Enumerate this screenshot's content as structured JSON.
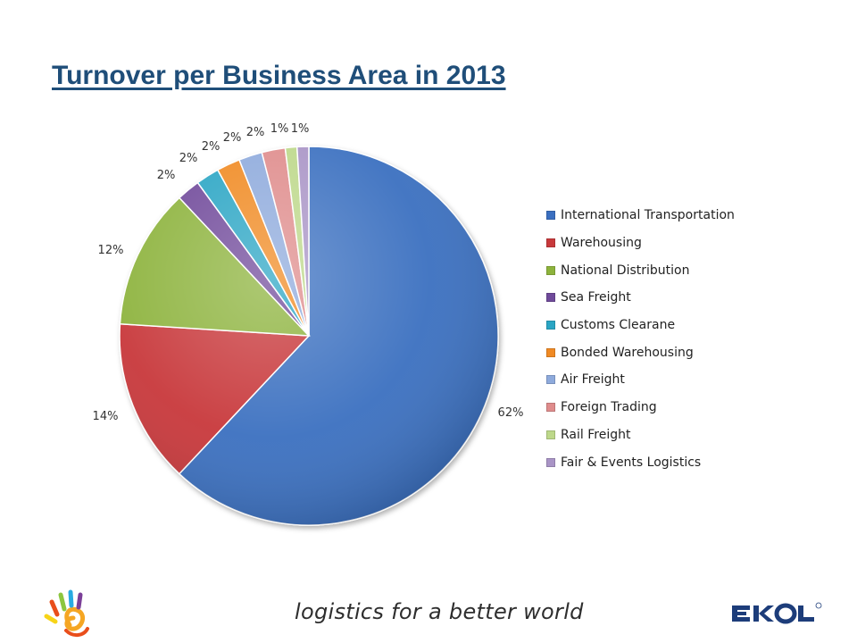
{
  "slide": {
    "title": "Turnover per Business Area in 2013",
    "tagline": "logistics for a better world",
    "logo_right": "EKOL",
    "logo_left": "EKOL hand logo"
  },
  "colors": {
    "title": "#1f4e79"
  },
  "chart_data": {
    "type": "pie",
    "style": "3d-effect pie",
    "legend_position": "right",
    "slices": [
      {
        "name": "International Transportation",
        "value": 62,
        "label": "62%",
        "color": "#3a6fc0"
      },
      {
        "name": "Warehousing",
        "value": 14,
        "label": "14%",
        "color": "#c8393b"
      },
      {
        "name": "National Distribution",
        "value": 12,
        "label": "12%",
        "color": "#8db33c"
      },
      {
        "name": "Sea Freight",
        "value": 2,
        "label": "2%",
        "color": "#6f4a9a"
      },
      {
        "name": "Customs Clearane",
        "value": 2,
        "label": "2%",
        "color": "#2aa5c4"
      },
      {
        "name": "Bonded Warehousing",
        "value": 2,
        "label": "2%",
        "color": "#f08a24"
      },
      {
        "name": "Air Freight",
        "value": 2,
        "label": "2%",
        "color": "#8eaadc"
      },
      {
        "name": "Foreign Trading",
        "value": 2,
        "label": "2%",
        "color": "#df8c8c"
      },
      {
        "name": "Rail Freight",
        "value": 1,
        "label": "1%",
        "color": "#bdd88a"
      },
      {
        "name": "Fair & Events Logistics",
        "value": 1,
        "label": "1%",
        "color": "#a994c6"
      }
    ]
  }
}
